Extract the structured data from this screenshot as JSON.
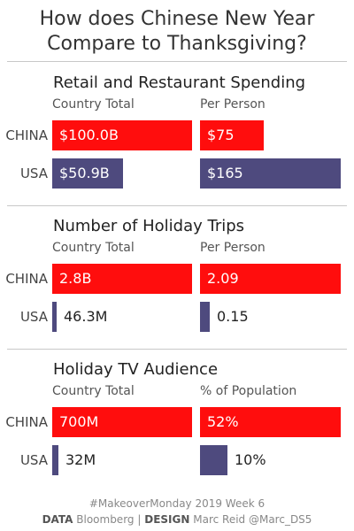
{
  "title_line1": "How does Chinese New Year",
  "title_line2": "Compare to Thanksgiving?",
  "colors": {
    "china": "#ff0d0d",
    "usa": "#4e4a7e"
  },
  "chart_data": [
    {
      "type": "bar",
      "title": "Retail and Restaurant Spending",
      "categories": [
        "CHINA",
        "USA"
      ],
      "series": [
        {
          "name": "Country Total",
          "values": [
            100.0,
            50.9
          ],
          "labels": [
            "$100.0B",
            "$50.9B"
          ],
          "max": 100.0
        },
        {
          "name": "Per Person",
          "values": [
            75,
            165
          ],
          "labels": [
            "$75",
            "$165"
          ],
          "max": 165
        }
      ]
    },
    {
      "type": "bar",
      "title": "Number of Holiday Trips",
      "categories": [
        "CHINA",
        "USA"
      ],
      "series": [
        {
          "name": "Country Total",
          "values": [
            2.8,
            0.0463
          ],
          "labels": [
            "2.8B",
            "46.3M"
          ],
          "max": 2.8
        },
        {
          "name": "Per Person",
          "values": [
            2.09,
            0.15
          ],
          "labels": [
            "2.09",
            "0.15"
          ],
          "max": 2.09
        }
      ]
    },
    {
      "type": "bar",
      "title": "Holiday TV Audience",
      "categories": [
        "CHINA",
        "USA"
      ],
      "series": [
        {
          "name": "Country Total",
          "values": [
            700,
            32
          ],
          "labels": [
            "700M",
            "32M"
          ],
          "max": 700
        },
        {
          "name": "% of Population",
          "values": [
            52,
            10
          ],
          "labels": [
            "52%",
            "10%"
          ],
          "max": 52
        }
      ]
    }
  ],
  "footer": {
    "line1": "#MakeoverMonday 2019 Week 6",
    "data_label": "DATA",
    "data_value": "Bloomberg",
    "separator": "|",
    "design_label": "DESIGN",
    "design_value": "Marc Reid @Marc_DS5"
  }
}
